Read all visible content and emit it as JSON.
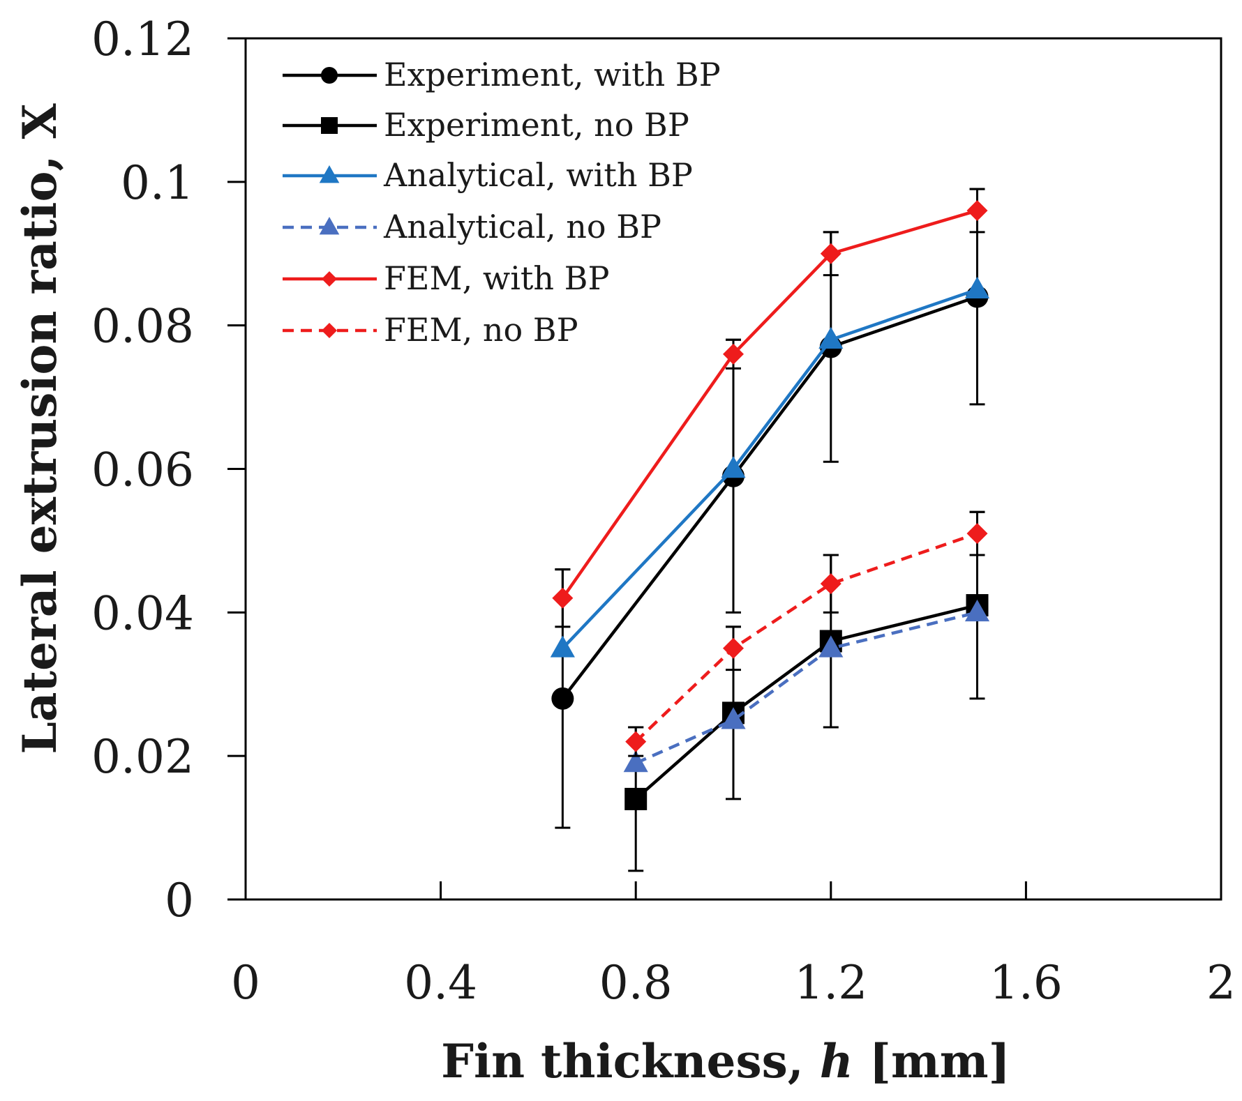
{
  "chart_data": {
    "type": "line",
    "title": "",
    "xlabel_main": "Fin thickness, ",
    "xlabel_italic": "h",
    "xlabel_unit": " [mm]",
    "ylabel": "Lateral extrusion ratio, X",
    "xlim": [
      0,
      2
    ],
    "ylim": [
      0,
      0.12
    ],
    "xticks": [
      0,
      0.4,
      0.8,
      1.2,
      1.6,
      2
    ],
    "xtick_labels": [
      "0",
      "0.4",
      "0.8",
      "1.2",
      "1.6",
      "2"
    ],
    "yticks": [
      0,
      0.02,
      0.04,
      0.06,
      0.08,
      0.1,
      0.12
    ],
    "ytick_labels": [
      "0",
      "0.02",
      "0.04",
      "0.06",
      "0.08",
      "0.1",
      "0.12"
    ],
    "grid": false,
    "legend_position": "top-left",
    "series": [
      {
        "name": "Experiment, with BP",
        "color": "#000000",
        "dash": "solid",
        "marker": "circle",
        "x": [
          0.65,
          1.0,
          1.2,
          1.5
        ],
        "y": [
          0.028,
          0.059,
          0.077,
          0.084
        ],
        "error": [
          0.018,
          0.019,
          0.016,
          0.015
        ]
      },
      {
        "name": "Experiment, no BP",
        "color": "#000000",
        "dash": "solid",
        "marker": "square",
        "x": [
          0.8,
          1.0,
          1.2,
          1.5
        ],
        "y": [
          0.014,
          0.026,
          0.036,
          0.041
        ],
        "error": [
          0.01,
          0.012,
          0.012,
          0.013
        ]
      },
      {
        "name": "Analytical, with BP",
        "color": "#1f77c4",
        "dash": "solid",
        "marker": "triangle",
        "x": [
          0.65,
          1.0,
          1.2,
          1.5
        ],
        "y": [
          0.035,
          0.06,
          0.078,
          0.085
        ],
        "error": null
      },
      {
        "name": "Analytical, no BP",
        "color": "#4a6fc0",
        "dash": "dashed",
        "marker": "triangle",
        "x": [
          0.8,
          1.0,
          1.2,
          1.5
        ],
        "y": [
          0.019,
          0.025,
          0.035,
          0.04
        ],
        "error": null
      },
      {
        "name": "FEM, with BP",
        "color": "#ee1c1c",
        "dash": "solid",
        "marker": "diamond",
        "x": [
          0.65,
          1.0,
          1.2,
          1.5
        ],
        "y": [
          0.042,
          0.076,
          0.09,
          0.096
        ],
        "error": [
          0.004,
          0.002,
          0.003,
          0.003
        ]
      },
      {
        "name": "FEM, no BP",
        "color": "#ee1c1c",
        "dash": "dashed",
        "marker": "diamond",
        "x": [
          0.8,
          1.0,
          1.2,
          1.5
        ],
        "y": [
          0.022,
          0.035,
          0.044,
          0.051
        ],
        "error": [
          0.002,
          0.003,
          0.004,
          0.003
        ]
      }
    ]
  }
}
